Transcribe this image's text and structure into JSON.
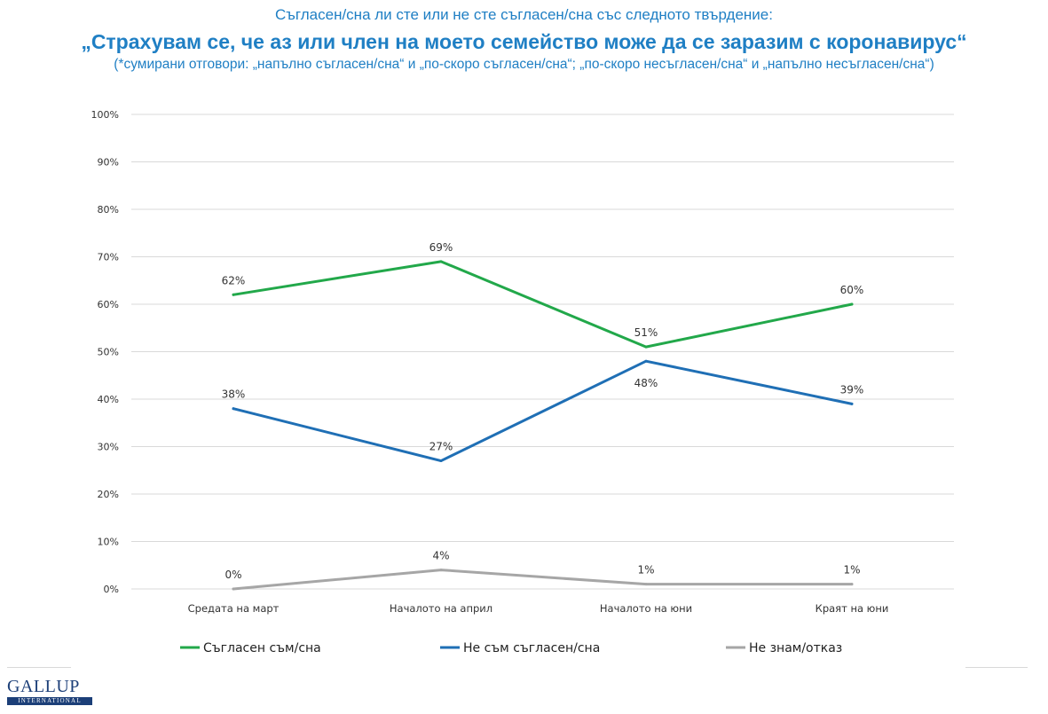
{
  "header": {
    "question": "Съгласен/сна ли сте или не сте съгласен/сна със следното твърдение:",
    "statement": "„Страхувам се, че аз или член на моето семейство може да се заразим с коронавирус“",
    "note": "(*сумирани отговори: „напълно съгласен/сна“ и „по-скоро съгласен/сна“; „по-скоро несъгласен/сна“ и „напълно несъгласен/сна“)"
  },
  "chart_data": {
    "type": "line",
    "categories": [
      "Средата на март",
      "Началото на април",
      "Началото на юни",
      "Краят на юни"
    ],
    "ylim": [
      0,
      100
    ],
    "yticks": [
      "0%",
      "10%",
      "20%",
      "30%",
      "40%",
      "50%",
      "60%",
      "70%",
      "80%",
      "90%",
      "100%"
    ],
    "grid": true,
    "legend_position": "bottom",
    "series": [
      {
        "name": "Съгласен съм/сна",
        "color": "#22a84a",
        "values": [
          62,
          69,
          51,
          60
        ],
        "labels": [
          "62%",
          "69%",
          "51%",
          "60%"
        ],
        "label_pos": [
          "above",
          "above",
          "above",
          "above"
        ]
      },
      {
        "name": "Не съм съгласен/сна",
        "color": "#1f6fb5",
        "values": [
          38,
          27,
          48,
          39
        ],
        "labels": [
          "38%",
          "27%",
          "48%",
          "39%"
        ],
        "label_pos": [
          "above",
          "above",
          "below",
          "above"
        ]
      },
      {
        "name": "Не знам/отказ",
        "color": "#a6a6a6",
        "values": [
          0,
          4,
          1,
          1
        ],
        "labels": [
          "0%",
          "4%",
          "1%",
          "1%"
        ],
        "label_pos": [
          "above",
          "above",
          "above",
          "above"
        ]
      }
    ]
  },
  "logo": {
    "main": "GALLUP",
    "sub": "INTERNATIONAL"
  }
}
